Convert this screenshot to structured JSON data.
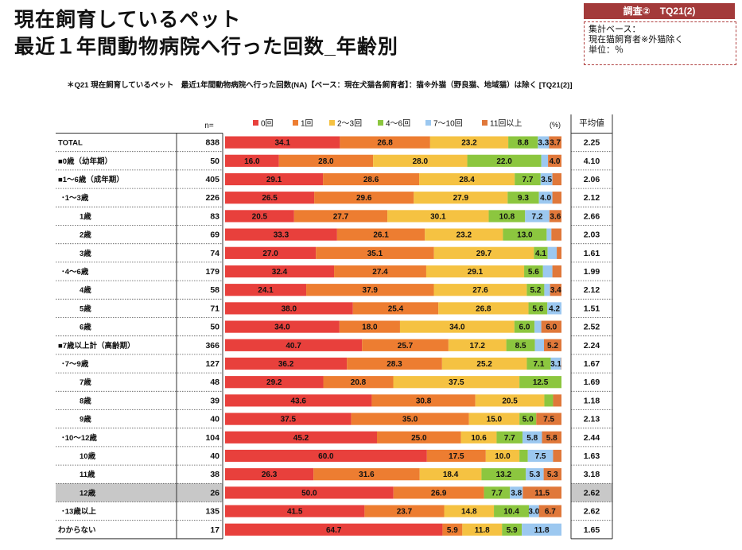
{
  "title": {
    "line1": "現在飼育しているペット",
    "line2": "最近１年間動物病院へ行った回数_年齢別"
  },
  "survey_tag": "調査②　TQ21(2)",
  "info_box": {
    "line1": "集計ベース：",
    "line2": "現在猫飼育者※外猫除く",
    "line3": "単位：％"
  },
  "question_note": "＊Q21 現在飼育しているペット　最近1年間動物病院へ行った回数(NA)【ベース：現在犬猫各飼育者】：猫※外猫（野良猫、地域猫）は除く [TQ21(2)]",
  "n_header": "n=",
  "percent_label": "(%)",
  "avg_header": "平均値",
  "chart_data": {
    "type": "bar",
    "orientation": "horizontal-stacked-100",
    "xlim": [
      0,
      100
    ],
    "series_names": [
      "0回",
      "1回",
      "2〜3回",
      "4〜6回",
      "7〜10回",
      "11回以上"
    ],
    "colors": [
      "#e8403c",
      "#ed7d31",
      "#f5c242",
      "#8cc63f",
      "#9cc8f0",
      "#e0783a"
    ],
    "rows": [
      {
        "label": "TOTAL",
        "indent": 0,
        "n": "838",
        "avg": "2.25",
        "values": [
          34.1,
          26.8,
          23.2,
          8.8,
          3.3,
          3.7
        ],
        "labels": [
          "34.1",
          "26.8",
          "23.2",
          "8.8",
          "3.3",
          "3.7"
        ],
        "highlight": false
      },
      {
        "label": "■0歳（幼年期）",
        "indent": 0,
        "n": "50",
        "avg": "4.10",
        "values": [
          16.0,
          28.0,
          28.0,
          22.0,
          2.0,
          4.0
        ],
        "labels": [
          "16.0",
          "28.0",
          "28.0",
          "22.0",
          "",
          "4.0"
        ],
        "highlight": false
      },
      {
        "label": "■1〜6歳（成年期）",
        "indent": 0,
        "n": "405",
        "avg": "2.06",
        "values": [
          29.1,
          28.6,
          28.4,
          7.7,
          3.5,
          2.7
        ],
        "labels": [
          "29.1",
          "28.6",
          "28.4",
          "7.7",
          "3.5",
          ""
        ],
        "highlight": false
      },
      {
        "label": "･1〜3歳",
        "indent": 1,
        "n": "226",
        "avg": "2.12",
        "values": [
          26.5,
          29.6,
          27.9,
          9.3,
          4.0,
          2.7
        ],
        "labels": [
          "26.5",
          "29.6",
          "27.9",
          "9.3",
          "4.0",
          ""
        ],
        "highlight": false
      },
      {
        "label": "1歳",
        "indent": 2,
        "n": "83",
        "avg": "2.66",
        "values": [
          20.5,
          27.7,
          30.1,
          10.8,
          7.2,
          3.6
        ],
        "labels": [
          "20.5",
          "27.7",
          "30.1",
          "10.8",
          "7.2",
          "3.6"
        ],
        "highlight": false
      },
      {
        "label": "2歳",
        "indent": 2,
        "n": "69",
        "avg": "2.03",
        "values": [
          33.3,
          26.1,
          23.2,
          13.0,
          1.4,
          3.0
        ],
        "labels": [
          "33.3",
          "26.1",
          "23.2",
          "13.0",
          "",
          ""
        ],
        "highlight": false
      },
      {
        "label": "3歳",
        "indent": 2,
        "n": "74",
        "avg": "1.61",
        "values": [
          27.0,
          35.1,
          29.7,
          4.1,
          2.7,
          1.4
        ],
        "labels": [
          "27.0",
          "35.1",
          "29.7",
          "4.1",
          "",
          ""
        ],
        "highlight": false
      },
      {
        "label": "･4〜6歳",
        "indent": 1,
        "n": "179",
        "avg": "1.99",
        "values": [
          32.4,
          27.4,
          29.1,
          5.6,
          2.8,
          2.7
        ],
        "labels": [
          "32.4",
          "27.4",
          "29.1",
          "5.6",
          "",
          ""
        ],
        "highlight": false
      },
      {
        "label": "4歳",
        "indent": 2,
        "n": "58",
        "avg": "2.12",
        "values": [
          24.1,
          37.9,
          27.6,
          5.2,
          1.7,
          3.4
        ],
        "labels": [
          "24.1",
          "37.9",
          "27.6",
          "5.2",
          "",
          "3.4"
        ],
        "highlight": false
      },
      {
        "label": "5歳",
        "indent": 2,
        "n": "71",
        "avg": "1.51",
        "values": [
          38.0,
          25.4,
          26.8,
          5.6,
          4.2,
          0.0
        ],
        "labels": [
          "38.0",
          "25.4",
          "26.8",
          "5.6",
          "4.2",
          ""
        ],
        "highlight": false
      },
      {
        "label": "6歳",
        "indent": 2,
        "n": "50",
        "avg": "2.52",
        "values": [
          34.0,
          18.0,
          34.0,
          6.0,
          2.0,
          6.0
        ],
        "labels": [
          "34.0",
          "18.0",
          "34.0",
          "6.0",
          "",
          "6.0"
        ],
        "highlight": false
      },
      {
        "label": "■7歳以上計（高齢期）",
        "indent": 0,
        "n": "366",
        "avg": "2.24",
        "values": [
          40.7,
          25.7,
          17.2,
          8.5,
          2.7,
          5.2
        ],
        "labels": [
          "40.7",
          "25.7",
          "17.2",
          "8.5",
          "",
          "5.2"
        ],
        "highlight": false
      },
      {
        "label": "･7〜9歳",
        "indent": 1,
        "n": "127",
        "avg": "1.67",
        "values": [
          36.2,
          28.3,
          25.2,
          7.1,
          3.1,
          0.1
        ],
        "labels": [
          "36.2",
          "28.3",
          "25.2",
          "7.1",
          "3.1",
          ""
        ],
        "highlight": false
      },
      {
        "label": "7歳",
        "indent": 2,
        "n": "48",
        "avg": "1.69",
        "values": [
          29.2,
          20.8,
          37.5,
          12.5,
          0.0,
          0.0
        ],
        "labels": [
          "29.2",
          "20.8",
          "37.5",
          "12.5",
          "",
          ""
        ],
        "highlight": false
      },
      {
        "label": "8歳",
        "indent": 2,
        "n": "39",
        "avg": "1.18",
        "values": [
          43.6,
          30.8,
          20.5,
          2.6,
          0.0,
          2.5
        ],
        "labels": [
          "43.6",
          "30.8",
          "20.5",
          "",
          "",
          ""
        ],
        "highlight": false
      },
      {
        "label": "9歳",
        "indent": 2,
        "n": "40",
        "avg": "2.13",
        "values": [
          37.5,
          35.0,
          15.0,
          5.0,
          0.0,
          7.5
        ],
        "labels": [
          "37.5",
          "35.0",
          "15.0",
          "5.0",
          "",
          "7.5"
        ],
        "highlight": false
      },
      {
        "label": "･10〜12歳",
        "indent": 1,
        "n": "104",
        "avg": "2.44",
        "values": [
          45.2,
          25.0,
          10.6,
          7.7,
          5.8,
          5.8
        ],
        "labels": [
          "45.2",
          "25.0",
          "10.6",
          "7.7",
          "5.8",
          "5.8"
        ],
        "highlight": false
      },
      {
        "label": "10歳",
        "indent": 2,
        "n": "40",
        "avg": "1.63",
        "values": [
          60.0,
          17.5,
          10.0,
          2.5,
          7.5,
          2.5
        ],
        "labels": [
          "60.0",
          "17.5",
          "10.0",
          "",
          "7.5",
          ""
        ],
        "highlight": false
      },
      {
        "label": "11歳",
        "indent": 2,
        "n": "38",
        "avg": "3.18",
        "values": [
          26.3,
          31.6,
          18.4,
          13.2,
          5.3,
          5.3
        ],
        "labels": [
          "26.3",
          "31.6",
          "18.4",
          "13.2",
          "5.3",
          "5.3"
        ],
        "highlight": false
      },
      {
        "label": "12歳",
        "indent": 2,
        "n": "26",
        "avg": "2.62",
        "values": [
          50.0,
          26.9,
          0.0,
          7.7,
          3.8,
          11.5
        ],
        "labels": [
          "50.0",
          "26.9",
          "",
          "7.7",
          "3.8",
          "11.5"
        ],
        "highlight": true
      },
      {
        "label": "･13歳以上",
        "indent": 1,
        "n": "135",
        "avg": "2.62",
        "values": [
          41.5,
          23.7,
          14.8,
          10.4,
          3.0,
          6.7
        ],
        "labels": [
          "41.5",
          "23.7",
          "14.8",
          "10.4",
          "3.0",
          "6.7"
        ],
        "highlight": false
      },
      {
        "label": "わからない",
        "indent": 0,
        "n": "17",
        "avg": "1.65",
        "values": [
          64.7,
          5.9,
          11.8,
          5.9,
          11.8,
          0.0
        ],
        "labels": [
          "64.7",
          "5.9",
          "11.8",
          "5.9",
          "11.8",
          ""
        ],
        "highlight": false
      }
    ]
  }
}
